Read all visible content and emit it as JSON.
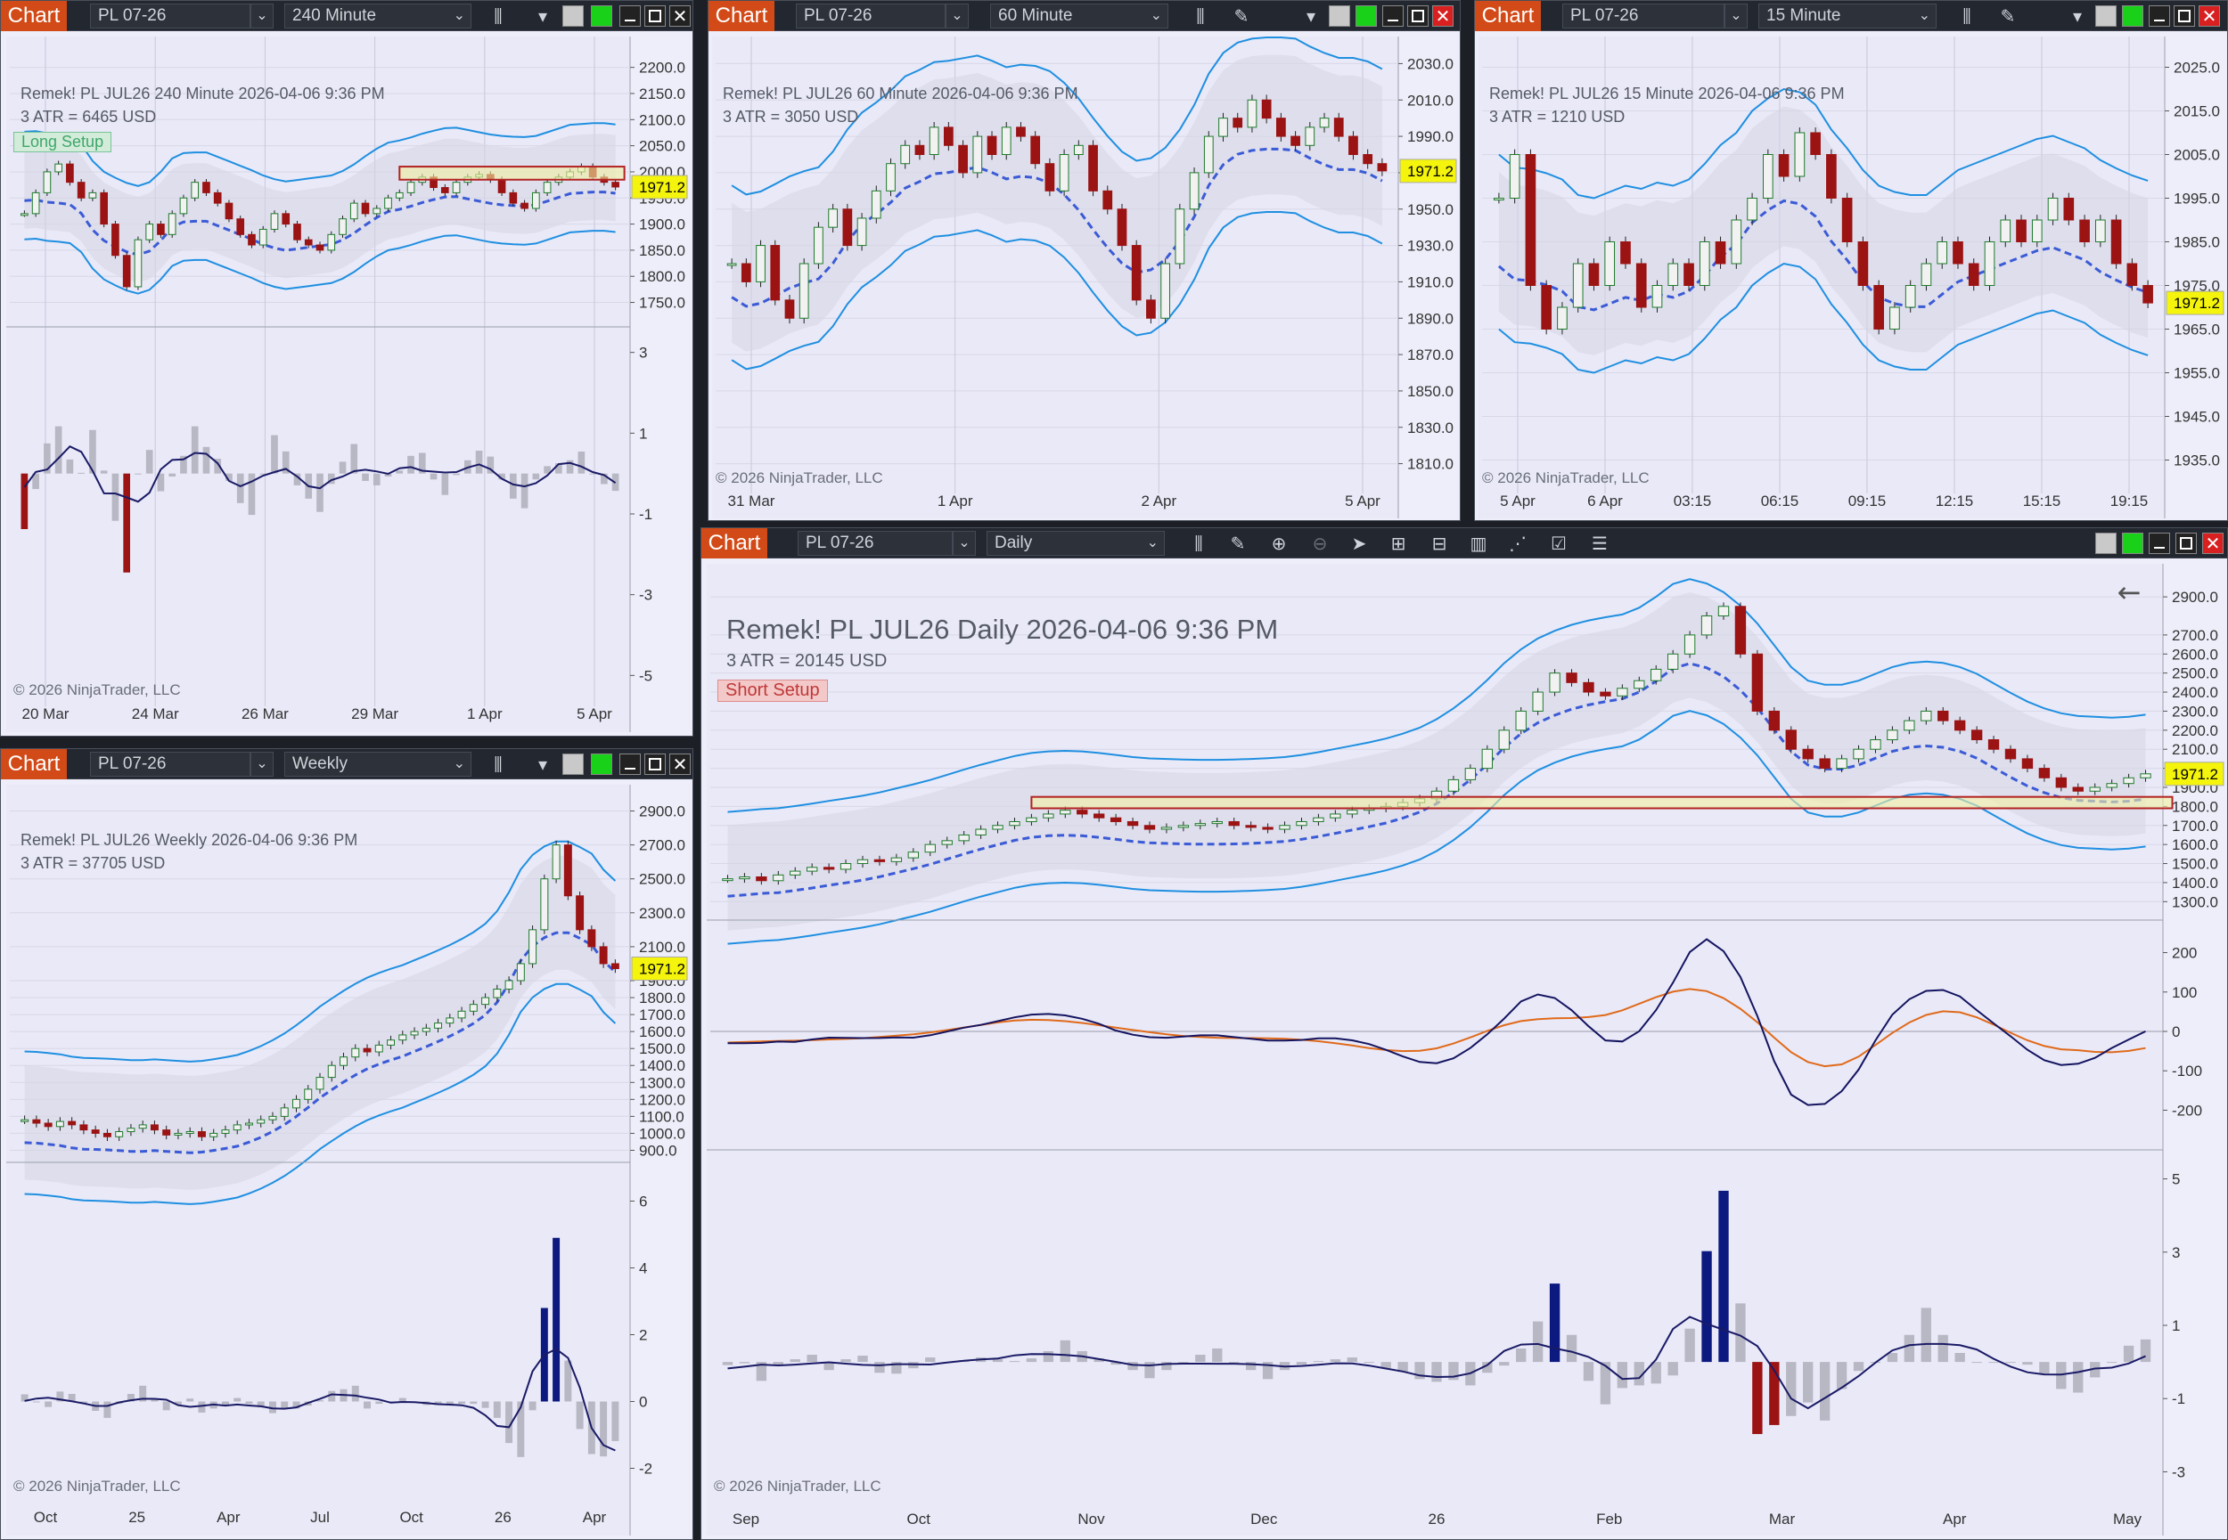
{
  "toolbar": {
    "chart_label": "Chart",
    "instrument": "PL 07-26"
  },
  "windows": {
    "w240": {
      "interval": "240 Minute",
      "title": "Remek!  PL JUL26  240 Minute  2026-04-06 9:36 PM",
      "atr": "3 ATR = 6465 USD",
      "setup": "Long Setup",
      "copyright": "© 2026 NinjaTrader, LLC"
    },
    "w60": {
      "interval": "60 Minute",
      "title": "Remek!  PL JUL26  60 Minute  2026-04-06 9:36 PM",
      "atr": "3 ATR = 3050 USD",
      "copyright": "© 2026 NinjaTrader, LLC"
    },
    "w15": {
      "interval": "15 Minute",
      "title": "Remek!  PL JUL26  15 Minute  2026-04-06 9:36 PM",
      "atr": "3 ATR = 1210 USD",
      "copyright": "© 2026 NinjaTrader, LLC"
    },
    "wk": {
      "interval": "Weekly",
      "title": "Remek!  PL JUL26  Weekly  2026-04-06 9:36 PM",
      "atr": "3 ATR = 37705 USD",
      "copyright": "© 2026 NinjaTrader, LLC"
    },
    "wd": {
      "interval": "Daily",
      "title": "Remek!  PL JUL26  Daily  2026-04-06 9:36 PM",
      "atr": "3 ATR = 20145 USD",
      "setup": "Short Setup",
      "copyright": "© 2026 NinjaTrader, LLC"
    }
  },
  "colors": {
    "accent": "#d14a17",
    "price_tag": "#f4f40c",
    "up_candle": "#1f7a2b",
    "down_candle": "#9b1313",
    "hist_blue": "#0c1a80",
    "hist_red": "#9b1313",
    "band": "#1f8fe0"
  },
  "chart_data": [
    {
      "id": "w240",
      "type": "candlestick",
      "last_price": "1971.2",
      "y_ticks": [
        2200.0,
        2150.0,
        2100.0,
        2050.0,
        2000.0,
        1950.0,
        1900.0,
        1850.0,
        1800.0,
        1750.0
      ],
      "ylim": [
        1710,
        2225
      ],
      "x_ticks": [
        "20 Mar",
        "24 Mar",
        "26 Mar",
        "29 Mar",
        "1 Apr",
        "5 Apr"
      ],
      "close": [
        1920,
        1960,
        2000,
        2015,
        1980,
        1950,
        1960,
        1900,
        1840,
        1780,
        1870,
        1900,
        1880,
        1920,
        1950,
        1980,
        1960,
        1940,
        1910,
        1880,
        1860,
        1890,
        1920,
        1900,
        1870,
        1860,
        1850,
        1880,
        1910,
        1940,
        1920,
        1930,
        1950,
        1960,
        1980,
        1990,
        1970,
        1960,
        1980,
        1990,
        1995,
        1985,
        1960,
        1940,
        1930,
        1960,
        1980,
        1990,
        2000,
        2010,
        1990,
        1980,
        1971
      ],
      "osc_ticks": [
        3,
        1,
        -1,
        -3,
        -5
      ],
      "osc_ylim": [
        -5.5,
        3.5
      ]
    },
    {
      "id": "w60",
      "type": "candlestick",
      "last_price": "1971.2",
      "y_ticks": [
        2030.0,
        2010.0,
        1990.0,
        1970.0,
        1950.0,
        1930.0,
        1910.0,
        1890.0,
        1870.0,
        1850.0,
        1830.0,
        1810.0
      ],
      "ylim": [
        1800,
        2040
      ],
      "x_ticks": [
        "31 Mar",
        "1 Apr",
        "2 Apr",
        "5 Apr"
      ],
      "close": [
        1920,
        1910,
        1930,
        1900,
        1890,
        1920,
        1940,
        1950,
        1930,
        1945,
        1960,
        1975,
        1985,
        1980,
        1995,
        1985,
        1970,
        1990,
        1980,
        1995,
        1990,
        1975,
        1960,
        1980,
        1985,
        1960,
        1950,
        1930,
        1900,
        1890,
        1920,
        1950,
        1970,
        1990,
        2000,
        1995,
        2010,
        2000,
        1990,
        1985,
        1995,
        2000,
        1990,
        1980,
        1975,
        1971
      ],
      "osc_ticks": [],
      "osc_ylim": [
        0,
        1
      ]
    },
    {
      "id": "w15",
      "type": "candlestick",
      "last_price": "1971.2",
      "y_ticks": [
        2025.0,
        2015.0,
        2005.0,
        1995.0,
        1985.0,
        1975.0,
        1965.0,
        1955.0,
        1945.0,
        1935.0
      ],
      "ylim": [
        1930,
        2030
      ],
      "x_ticks": [
        "5 Apr",
        "6 Apr",
        "03:15",
        "06:15",
        "09:15",
        "12:15",
        "15:15",
        "19:15"
      ],
      "close": [
        1995,
        2005,
        1975,
        1965,
        1970,
        1980,
        1975,
        1985,
        1980,
        1970,
        1975,
        1980,
        1975,
        1985,
        1980,
        1990,
        1995,
        2005,
        2000,
        2010,
        2005,
        1995,
        1985,
        1975,
        1965,
        1970,
        1975,
        1980,
        1985,
        1980,
        1975,
        1985,
        1990,
        1985,
        1990,
        1995,
        1990,
        1985,
        1990,
        1980,
        1975,
        1971
      ],
      "osc_ticks": [],
      "osc_ylim": [
        0,
        1
      ]
    },
    {
      "id": "wk",
      "type": "candlestick",
      "last_price": "1971.2",
      "y_ticks": [
        2900.0,
        2700.0,
        2500.0,
        2300.0,
        2100.0,
        1900.0,
        1800.0,
        1700.0,
        1600.0,
        1500.0,
        1400.0,
        1300.0,
        1200.0,
        1100.0,
        1000.0,
        900.0
      ],
      "ylim": [
        850,
        2950
      ],
      "x_ticks": [
        "Oct",
        "25",
        "Apr",
        "Jul",
        "Oct",
        "26",
        "Apr"
      ],
      "close": [
        1080,
        1060,
        1040,
        1070,
        1050,
        1020,
        1000,
        980,
        1010,
        1030,
        1050,
        1020,
        990,
        1000,
        1010,
        980,
        1000,
        1020,
        1050,
        1060,
        1080,
        1100,
        1150,
        1200,
        1260,
        1330,
        1400,
        1450,
        1500,
        1480,
        1520,
        1550,
        1580,
        1600,
        1620,
        1650,
        1680,
        1720,
        1760,
        1800,
        1850,
        1900,
        2000,
        2200,
        2500,
        2700,
        2400,
        2200,
        2100,
        2000,
        1971
      ],
      "osc_ticks": [
        6,
        4,
        2,
        0,
        -2
      ],
      "osc_ylim": [
        -2.6,
        7
      ]
    },
    {
      "id": "wd",
      "type": "candlestick",
      "last_price": "1971.2",
      "y_ticks": [
        2900.0,
        2700.0,
        2600.0,
        2500.0,
        2400.0,
        2300.0,
        2200.0,
        2100.0,
        2000.0,
        1900.0,
        1800.0,
        1700.0,
        1600.0,
        1500.0,
        1400.0,
        1300.0
      ],
      "ylim": [
        1250,
        2980
      ],
      "x_ticks": [
        "Sep",
        "Oct",
        "Nov",
        "Dec",
        "26",
        "Feb",
        "Mar",
        "Apr",
        "May"
      ],
      "close": [
        1420,
        1430,
        1410,
        1440,
        1460,
        1480,
        1470,
        1500,
        1520,
        1510,
        1530,
        1560,
        1600,
        1620,
        1650,
        1680,
        1700,
        1720,
        1740,
        1760,
        1780,
        1760,
        1740,
        1720,
        1700,
        1680,
        1690,
        1700,
        1710,
        1720,
        1700,
        1690,
        1680,
        1700,
        1720,
        1740,
        1760,
        1780,
        1790,
        1800,
        1820,
        1840,
        1880,
        1940,
        2000,
        2100,
        2200,
        2300,
        2400,
        2500,
        2450,
        2400,
        2380,
        2420,
        2460,
        2520,
        2600,
        2700,
        2800,
        2850,
        2600,
        2300,
        2200,
        2100,
        2050,
        2000,
        2050,
        2100,
        2150,
        2200,
        2250,
        2300,
        2250,
        2200,
        2150,
        2100,
        2050,
        2000,
        1950,
        1900,
        1880,
        1900,
        1920,
        1950,
        1971
      ],
      "macd_ticks": [
        200,
        100,
        0,
        -100,
        -200
      ],
      "macd_ylim": [
        -260,
        260
      ],
      "osc_ticks": [
        5,
        3,
        1,
        -1,
        -3
      ],
      "osc_ylim": [
        -3.5,
        5.5
      ]
    }
  ]
}
